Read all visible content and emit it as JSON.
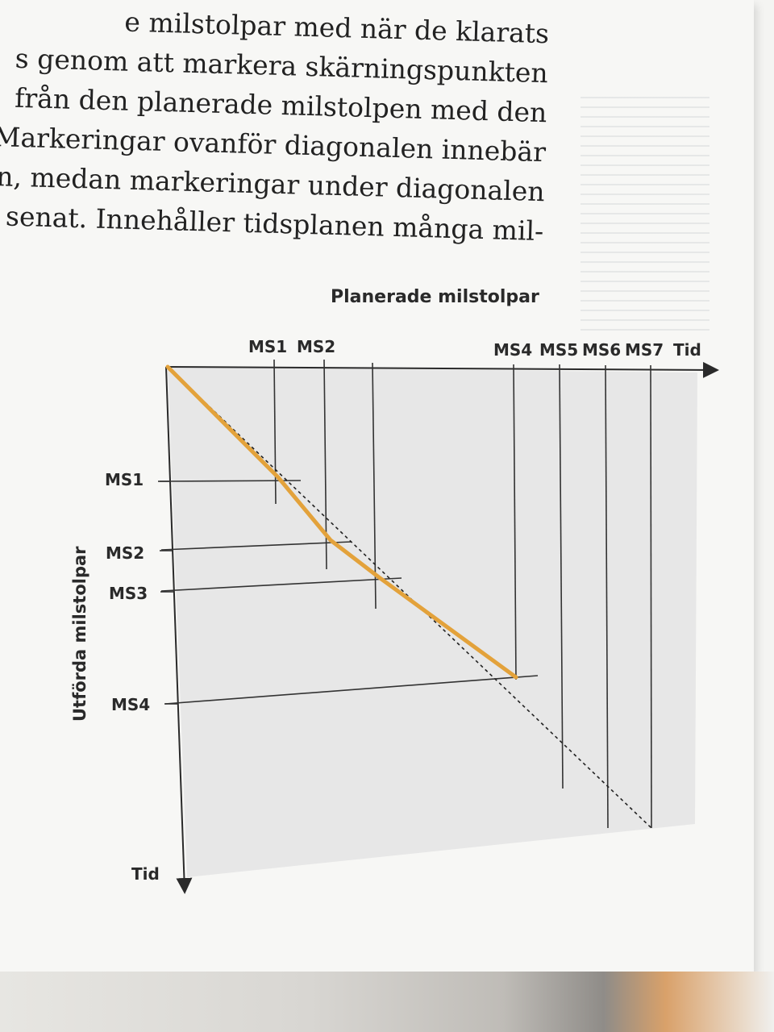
{
  "text_lines": [
    "e milstolpar med när de klarats",
    "s genom att markera skärningspunkten",
    "från den planerade milstolpen med den",
    "Markeringar ovanför diagonalen innebär",
    "n, medan markeringar under diagonalen",
    "senat. Innehåller tidsplanen många mil-"
  ],
  "diagram": {
    "title": "Planerade milstolpar",
    "y_axis_label": "Utförda milstolpar",
    "top_labels": [
      "MS1",
      "MS2",
      "MS4",
      "MS5",
      "MS6",
      "MS7",
      "Tid"
    ],
    "left_labels": [
      "MS1",
      "MS2",
      "MS3",
      "MS4"
    ],
    "bottom_label": "Tid",
    "accent_color": "#e3a23b"
  }
}
